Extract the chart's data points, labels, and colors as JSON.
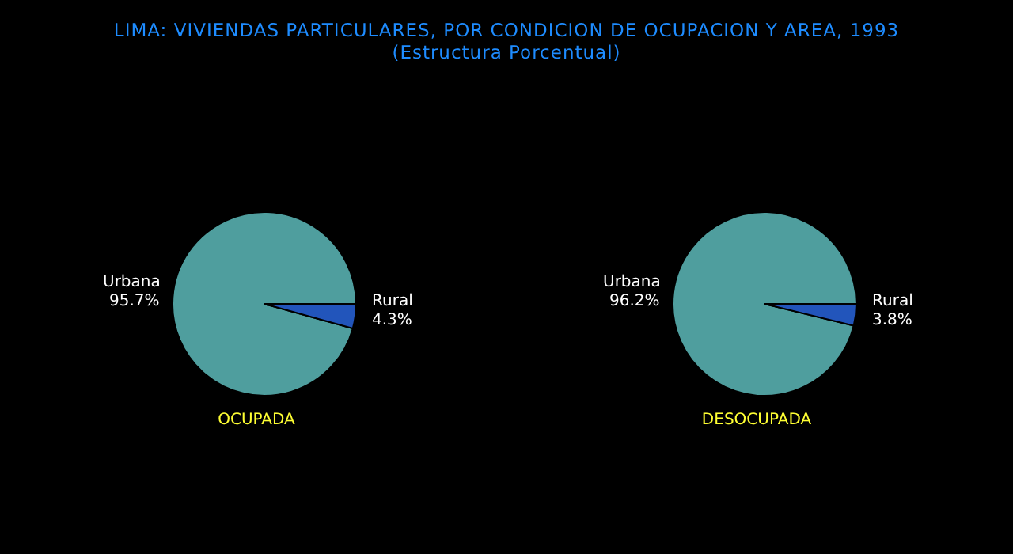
{
  "chart_data": [
    {
      "type": "pie",
      "title": "LIMA: VIVIENDAS PARTICULARES, POR CONDICION DE OCUPACION Y AREA, 1993",
      "subtitle": "(Estructura Porcentual)",
      "xlabel": "OCUPADA",
      "categories": [
        "Urbana",
        "Rural"
      ],
      "values": [
        95.7,
        4.3
      ],
      "value_labels": [
        "95.7%",
        "4.3%"
      ],
      "colors": [
        "#4f9e9e",
        "#2255bb"
      ]
    },
    {
      "type": "pie",
      "xlabel": "DESOCUPADA",
      "categories": [
        "Urbana",
        "Rural"
      ],
      "values": [
        96.2,
        3.8
      ],
      "value_labels": [
        "96.2%",
        "3.8%"
      ],
      "colors": [
        "#4f9e9e",
        "#2255bb"
      ]
    }
  ]
}
